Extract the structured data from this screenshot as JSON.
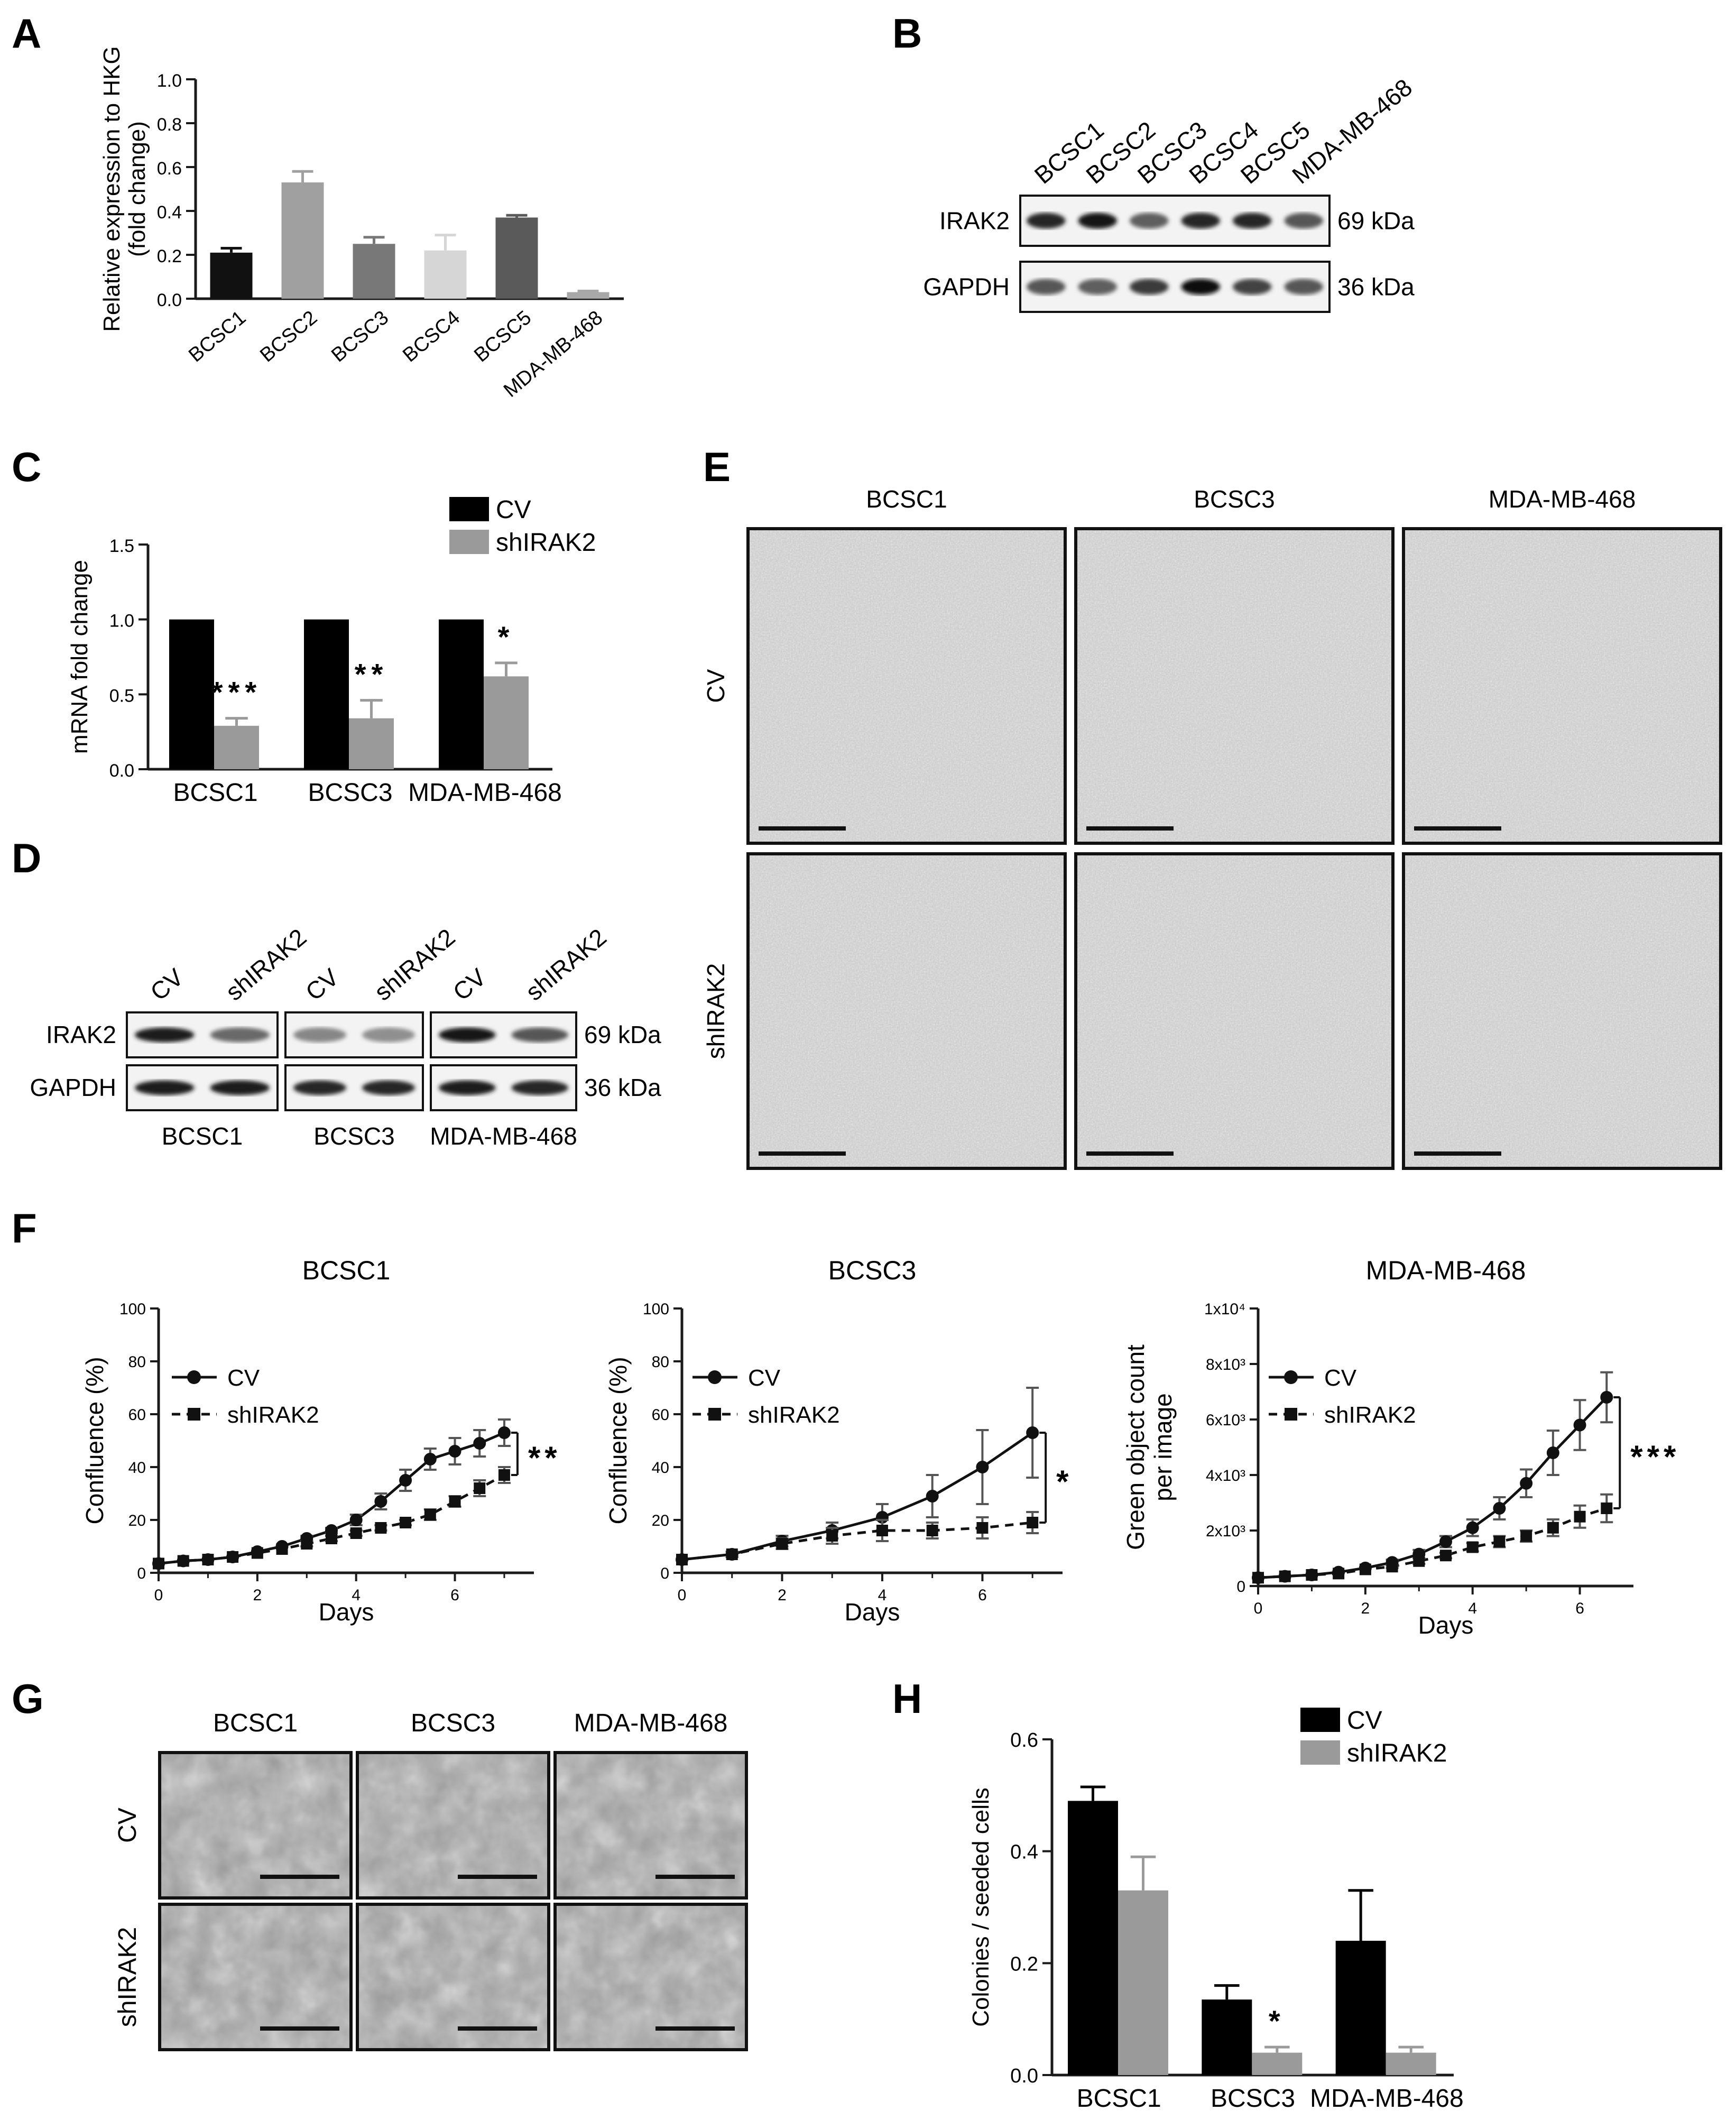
{
  "colors": {
    "black": "#000000",
    "gray": "#9a9a9a",
    "axis": "#1a1a1a"
  },
  "panels": [
    "A",
    "B",
    "C",
    "D",
    "E",
    "F",
    "G",
    "H"
  ],
  "chart_data": [
    {
      "panel": "A",
      "type": "bar",
      "categories": [
        "BCSC1",
        "BCSC2",
        "BCSC3",
        "BCSC4",
        "BCSC5",
        "MDA-MB-468"
      ],
      "values": [
        0.21,
        0.53,
        0.25,
        0.22,
        0.37,
        0.03
      ],
      "errors": [
        0.02,
        0.05,
        0.03,
        0.07,
        0.01,
        0.005
      ],
      "colors": [
        "#111111",
        "#a0a0a0",
        "#787878",
        "#d6d6d6",
        "#5a5a5a",
        "#a8a8a8"
      ],
      "ylabel": "Relative expression to HKG (fold change)",
      "ylabel_lines": [
        "Relative expression to HKG",
        "(fold change)"
      ],
      "ylim": [
        0,
        1.0
      ],
      "yticks": [
        "0.0",
        "0.2",
        "0.4",
        "0.6",
        "0.8",
        "1.0"
      ]
    },
    {
      "panel": "C",
      "type": "bar",
      "categories": [
        "BCSC1",
        "BCSC3",
        "MDA-MB-468"
      ],
      "series": [
        {
          "name": "CV",
          "values": [
            1.0,
            1.0,
            1.0
          ],
          "errors": [
            0,
            0,
            0
          ]
        },
        {
          "name": "shIRAK2",
          "values": [
            0.29,
            0.34,
            0.62
          ],
          "errors": [
            0.05,
            0.12,
            0.09
          ]
        }
      ],
      "significance": [
        "***",
        "**",
        "*"
      ],
      "ylabel": "mRNA fold change",
      "ylim": [
        0,
        1.5
      ],
      "yticks": [
        "0.0",
        "0.5",
        "1.0",
        "1.5"
      ],
      "legend": "top-right"
    },
    {
      "panel": "F",
      "type": "line",
      "title": "BCSC1",
      "series": [
        {
          "name": "CV",
          "x": [
            0,
            0.5,
            1,
            1.5,
            2,
            2.5,
            3,
            3.5,
            4,
            4.5,
            5,
            5.5,
            6,
            6.5,
            7
          ],
          "values": [
            3.5,
            4.5,
            5,
            6,
            8,
            10,
            13,
            16,
            20,
            27,
            35,
            43,
            46,
            49,
            53
          ],
          "errors": [
            0,
            0,
            0,
            0,
            0,
            0,
            1,
            1,
            2,
            3,
            4,
            4,
            5,
            5,
            5
          ]
        },
        {
          "name": "shIRAK2",
          "x": [
            0,
            0.5,
            1,
            1.5,
            2,
            2.5,
            3,
            3.5,
            4,
            4.5,
            5,
            5.5,
            6,
            6.5,
            7
          ],
          "values": [
            3.5,
            4.5,
            5,
            6,
            7.5,
            9,
            11,
            13,
            15,
            17,
            19,
            22,
            27,
            32,
            37
          ],
          "errors": [
            0,
            0,
            0,
            0,
            0,
            0,
            1,
            1,
            1,
            1,
            1,
            2,
            2,
            3,
            3
          ]
        }
      ],
      "significance": "**",
      "ylabel": "Confluence (%)",
      "xlabel": "Days",
      "ylim": [
        0,
        100
      ],
      "xlim": [
        0,
        7.6
      ],
      "xticks": [
        0,
        2,
        4,
        6
      ],
      "yticks": [
        0,
        20,
        40,
        60,
        80,
        100
      ],
      "legend": "top-left"
    },
    {
      "panel": "F",
      "type": "line",
      "title": "BCSC3",
      "series": [
        {
          "name": "CV",
          "x": [
            0,
            1,
            2,
            3,
            4,
            5,
            6,
            7
          ],
          "values": [
            5,
            7,
            12,
            16,
            21,
            29,
            40,
            53
          ],
          "errors": [
            0,
            1,
            2,
            3,
            5,
            8,
            14,
            17
          ]
        },
        {
          "name": "shIRAK2",
          "x": [
            0,
            1,
            2,
            3,
            4,
            5,
            6,
            7
          ],
          "values": [
            5,
            7,
            11,
            14,
            16,
            16,
            17,
            19
          ],
          "errors": [
            0,
            1,
            2,
            3,
            4,
            3,
            4,
            4
          ]
        }
      ],
      "significance": "*",
      "ylabel": "Confluence (%)",
      "xlabel": "Days",
      "ylim": [
        0,
        100
      ],
      "xlim": [
        0,
        7.6
      ],
      "xticks": [
        0,
        2,
        4,
        6
      ],
      "yticks": [
        0,
        20,
        40,
        60,
        80,
        100
      ],
      "legend": "top-left"
    },
    {
      "panel": "F",
      "type": "line",
      "title": "MDA-MB-468",
      "series": [
        {
          "name": "CV",
          "x": [
            0,
            0.5,
            1,
            1.5,
            2,
            2.5,
            3,
            3.5,
            4,
            4.5,
            5,
            5.5,
            6,
            6.5
          ],
          "values": [
            300,
            350,
            400,
            500,
            650,
            850,
            1150,
            1600,
            2100,
            2800,
            3700,
            4800,
            5800,
            6800
          ],
          "errors": [
            0,
            0,
            0,
            0,
            0,
            100,
            150,
            200,
            300,
            400,
            500,
            800,
            900,
            900
          ]
        },
        {
          "name": "shIRAK2",
          "x": [
            0,
            0.5,
            1,
            1.5,
            2,
            2.5,
            3,
            3.5,
            4,
            4.5,
            5,
            5.5,
            6,
            6.5
          ],
          "values": [
            300,
            350,
            400,
            450,
            600,
            700,
            900,
            1100,
            1400,
            1600,
            1800,
            2100,
            2500,
            2800
          ],
          "errors": [
            0,
            0,
            0,
            0,
            0,
            50,
            100,
            100,
            150,
            200,
            200,
            300,
            400,
            500
          ]
        }
      ],
      "significance": "***",
      "ylabel": "Green object count per image",
      "ylabel_lines": [
        "Green object count",
        "per image"
      ],
      "xlabel": "Days",
      "ylim": [
        0,
        10000
      ],
      "xlim": [
        0,
        7.0
      ],
      "xticks": [
        0,
        2,
        4,
        6
      ],
      "yticks": [
        0,
        2000,
        4000,
        6000,
        8000,
        10000
      ],
      "ytick_labels": [
        "0",
        "2x10³",
        "4x10³",
        "6x10³",
        "8x10³",
        "1x10⁴"
      ],
      "legend": "top-left"
    },
    {
      "panel": "H",
      "type": "bar",
      "categories": [
        "BCSC1",
        "BCSC3",
        "MDA-MB-468"
      ],
      "series": [
        {
          "name": "CV",
          "values": [
            0.49,
            0.135,
            0.24
          ],
          "errors": [
            0.025,
            0.025,
            0.09
          ]
        },
        {
          "name": "shIRAK2",
          "values": [
            0.33,
            0.04,
            0.04
          ],
          "errors": [
            0.06,
            0.01,
            0.01
          ]
        }
      ],
      "significance": [
        "",
        "*",
        ""
      ],
      "ylabel": "Colonies / seeded cells",
      "ylim": [
        0,
        0.6
      ],
      "yticks": [
        "0.0",
        "0.2",
        "0.4",
        "0.6"
      ],
      "legend": "top-right"
    }
  ],
  "blot_B": {
    "lanes": [
      "BCSC1",
      "BCSC2",
      "BCSC3",
      "BCSC4",
      "BCSC5",
      "MDA-MB-468"
    ],
    "rows": [
      {
        "protein": "IRAK2",
        "kda": "69 kDa",
        "intensity": [
          0.85,
          0.95,
          0.55,
          0.85,
          0.85,
          0.6
        ]
      },
      {
        "protein": "GAPDH",
        "kda": "36 kDa",
        "intensity": [
          0.6,
          0.55,
          0.75,
          1.0,
          0.7,
          0.6
        ]
      }
    ]
  },
  "blot_D": {
    "groups": [
      {
        "cell": "BCSC1",
        "lanes": [
          "CV",
          "shIRAK2"
        ],
        "irak2": [
          0.9,
          0.5
        ],
        "gapdh": [
          0.9,
          0.9
        ]
      },
      {
        "cell": "BCSC3",
        "lanes": [
          "CV",
          "shIRAK2"
        ],
        "irak2": [
          0.35,
          0.3
        ],
        "gapdh": [
          0.85,
          0.85
        ]
      },
      {
        "cell": "MDA-MB-468",
        "lanes": [
          "CV",
          "shIRAK2"
        ],
        "irak2": [
          0.95,
          0.6
        ],
        "gapdh": [
          0.9,
          0.85
        ]
      }
    ],
    "rows": [
      {
        "protein": "IRAK2",
        "kda": "69 kDa"
      },
      {
        "protein": "GAPDH",
        "kda": "36 kDa"
      }
    ]
  },
  "micrographs_E": {
    "columns": [
      "BCSC1",
      "BCSC3",
      "MDA-MB-468"
    ],
    "rows": [
      "CV",
      "shIRAK2"
    ]
  },
  "micrographs_G": {
    "columns": [
      "BCSC1",
      "BCSC3",
      "MDA-MB-468"
    ],
    "rows": [
      "CV",
      "shIRAK2"
    ]
  }
}
